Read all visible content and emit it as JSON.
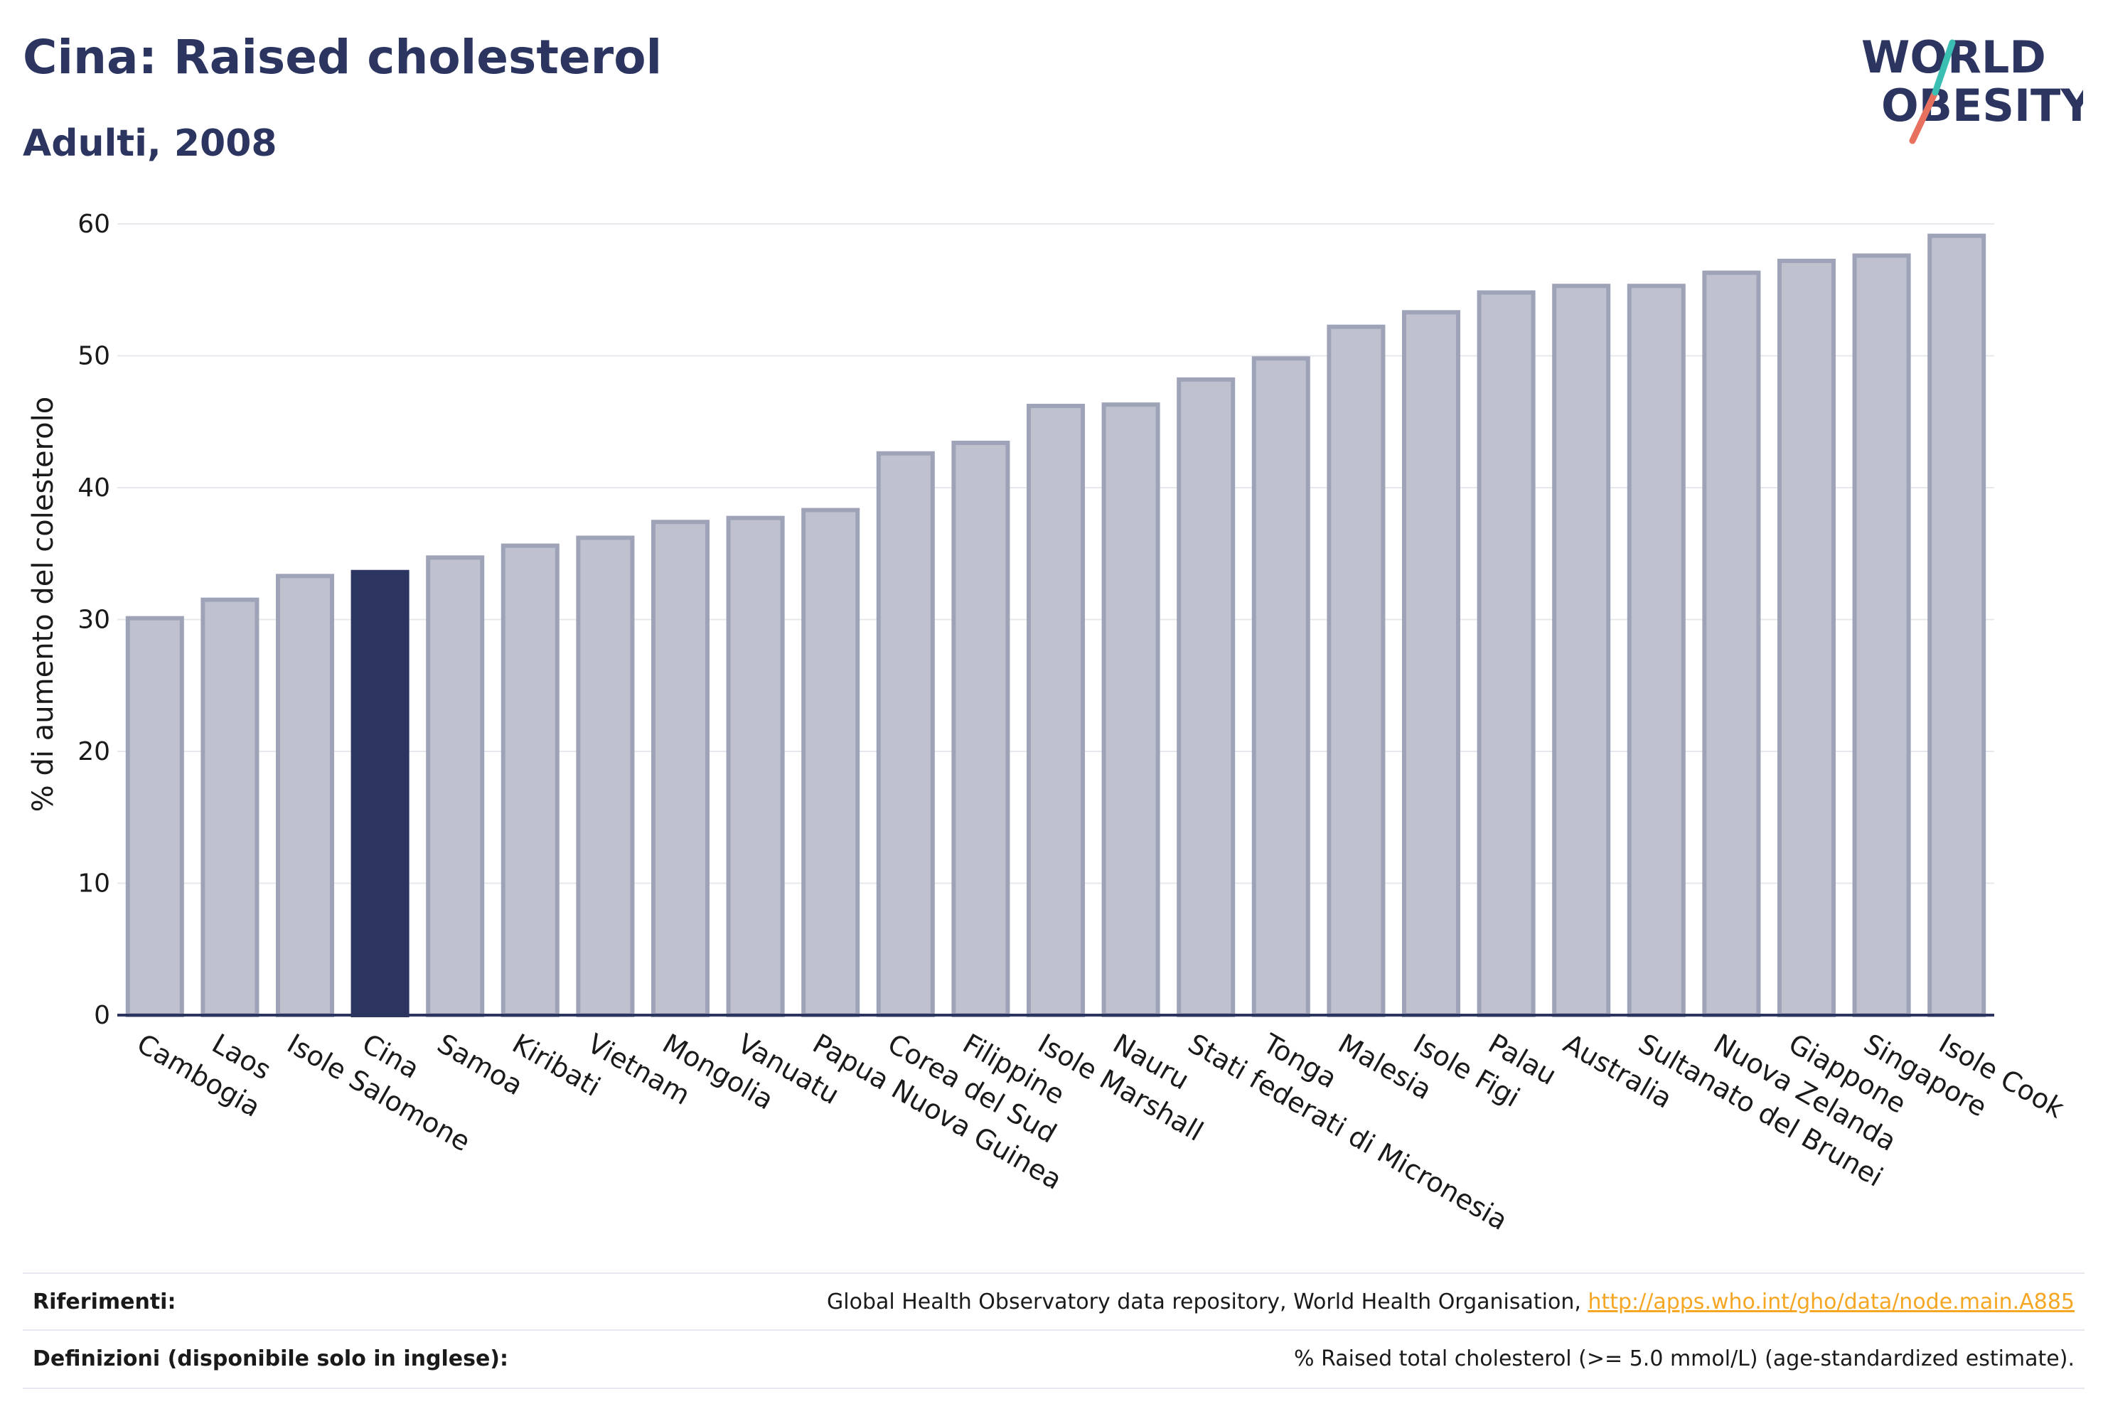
{
  "header": {
    "title": "Cina: Raised cholesterol",
    "subtitle": "Adulti, 2008"
  },
  "logo": {
    "text_line1": "WORLD",
    "text_line2": "OBESITY",
    "icon": "slash-mark-icon"
  },
  "footer": {
    "references_label": "Riferimenti:",
    "references_text": "Global Health Observatory data repository, World Health Organisation, ",
    "references_link": "http://apps.who.int/gho/data/node.main.A885",
    "definitions_label": "Definizioni (disponibile solo in inglese):",
    "definitions_text": "% Raised total cholesterol (>= 5.0 mmol/L) (age-standardized estimate)."
  },
  "colors": {
    "highlight": "#2b3560",
    "bar_fill": "#bfc2ce",
    "bar_stroke": "#9ea3b8",
    "title": "#2b3560",
    "link": "#f5a623"
  },
  "chart_data": {
    "type": "bar",
    "title": "Cina: Raised cholesterol",
    "subtitle": "Adulti, 2008",
    "xlabel": "",
    "ylabel": "% di aumento del colesterolo",
    "ylim": [
      0,
      60
    ],
    "yticks": [
      0,
      10,
      20,
      30,
      40,
      50,
      60
    ],
    "grid": true,
    "highlight": "Cina",
    "categories": [
      "Cambogia",
      "Laos",
      "Isole Salomone",
      "Cina",
      "Samoa",
      "Kiribati",
      "Vietnam",
      "Mongolia",
      "Vanuatu",
      "Papua Nuova Guinea",
      "Corea del Sud",
      "Filippine",
      "Isole Marshall",
      "Nauru",
      "Stati federati di Micronesia",
      "Tonga",
      "Malesia",
      "Isole Figi",
      "Palau",
      "Australia",
      "Sultanato del Brunei",
      "Nuova Zelanda",
      "Giappone",
      "Singapore",
      "Isole Cook"
    ],
    "values": [
      30.1,
      31.5,
      33.3,
      33.6,
      34.7,
      35.6,
      36.2,
      37.4,
      37.7,
      38.3,
      42.6,
      43.4,
      46.2,
      46.3,
      48.2,
      49.8,
      52.2,
      53.3,
      54.8,
      55.3,
      55.3,
      56.3,
      57.2,
      57.6,
      59.1
    ]
  }
}
